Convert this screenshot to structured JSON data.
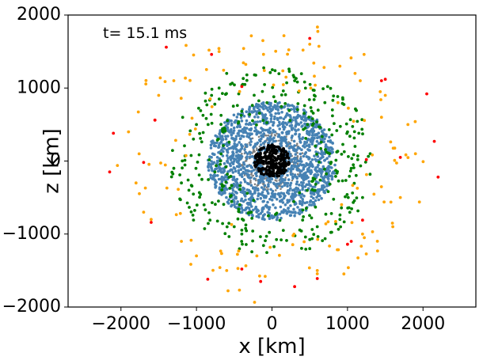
{
  "chart_data": {
    "type": "scatter",
    "title": "",
    "xlabel": "x [km]",
    "ylabel": "z [km]",
    "xlim": [
      -2700,
      2700
    ],
    "ylim": [
      -2000,
      2000
    ],
    "grid": false,
    "annotation": "t= 15.1 ms",
    "xticks": [
      -2000,
      -1000,
      0,
      1000,
      2000
    ],
    "xtick_labels": [
      "−2000",
      "−1000",
      "0",
      "1000",
      "2000"
    ],
    "yticks": [
      -2000,
      -1000,
      0,
      1000,
      2000
    ],
    "ytick_labels": [
      "−2000",
      "−1000",
      "0",
      "1000",
      "2000"
    ],
    "series": [
      {
        "color": "#808080",
        "marker_size": 2,
        "count": 220,
        "r_range": [
          80,
          420
        ],
        "x": [
          100,
          -150,
          250,
          -300,
          200,
          -50,
          350,
          -250,
          150,
          -100,
          300,
          -350,
          50,
          -200,
          400,
          -400,
          0,
          220,
          -180,
          120
        ],
        "y": [
          200,
          -150,
          100,
          250,
          -300,
          350,
          -100,
          -200,
          300,
          -350,
          50,
          0,
          -400,
          150,
          -50,
          100,
          380,
          260,
          -280,
          30
        ]
      },
      {
        "color": "#4682b4",
        "marker_size": 3,
        "count": 1500,
        "r_range": [
          150,
          850
        ],
        "x": [
          500,
          -500,
          700,
          -650,
          400,
          -300,
          600,
          -750,
          200,
          -200,
          800,
          -800,
          300,
          -400,
          650,
          -550,
          100,
          -100,
          750,
          -700
        ],
        "y": [
          400,
          -350,
          100,
          300,
          -600,
          700,
          -400,
          -200,
          650,
          -700,
          250,
          -100,
          -750,
          550,
          450,
          -500,
          800,
          -800,
          -300,
          200
        ]
      },
      {
        "color": "#008000",
        "marker_size": 3.2,
        "count": 380,
        "r_range": [
          550,
          1350
        ],
        "x": [
          800,
          -900,
          1100,
          -1000,
          600,
          -700,
          1200,
          -1200,
          300,
          -400,
          900,
          -800,
          500,
          -600,
          1000,
          -1100,
          700,
          -500,
          1300,
          -1300
        ],
        "y": [
          700,
          -600,
          200,
          500,
          -900,
          1000,
          -500,
          -300,
          1100,
          -1000,
          -800,
          900,
          -1200,
          1200,
          400,
          -400,
          800,
          -900,
          100,
          -100
        ]
      },
      {
        "color": "#ffa500",
        "marker_size": 3.2,
        "count": 150,
        "r_range": [
          1050,
          2050
        ],
        "x": [
          1500,
          -1600,
          1800,
          -1900,
          1200,
          -1300,
          1700,
          -1800,
          900,
          -1000,
          1600,
          -1500,
          600,
          -700,
          1900,
          -1700,
          1100,
          -1200,
          500,
          -600
        ],
        "y": [
          900,
          -800,
          500,
          400,
          -1000,
          1100,
          -500,
          -300,
          1300,
          -1300,
          -900,
          900,
          -1500,
          1500,
          100,
          -700,
          1200,
          -1100,
          1600,
          -1500
        ]
      },
      {
        "color": "#ff0000",
        "marker_size": 3.2,
        "count": 25,
        "x": [
          500,
          -1400,
          -800,
          2050,
          1500,
          2150,
          1700,
          2200,
          -2100,
          -2150,
          -1550,
          1250,
          -850,
          300,
          600,
          -1600,
          1000,
          -150,
          1450,
          -1550,
          -400,
          -1700,
          1200,
          -400,
          1050
        ],
        "y": [
          1680,
          1560,
          1460,
          920,
          1120,
          270,
          50,
          -220,
          380,
          -150,
          560,
          20,
          -1620,
          -1720,
          -1610,
          -840,
          -1140,
          -1650,
          1100,
          560,
          1020,
          -20,
          -810,
          -1480,
          -1100
        ]
      },
      {
        "color": "#000000",
        "marker_size": 3.2,
        "count": 260,
        "r_range": [
          0,
          235
        ],
        "x": [
          0
        ],
        "y": [
          0
        ]
      }
    ]
  }
}
